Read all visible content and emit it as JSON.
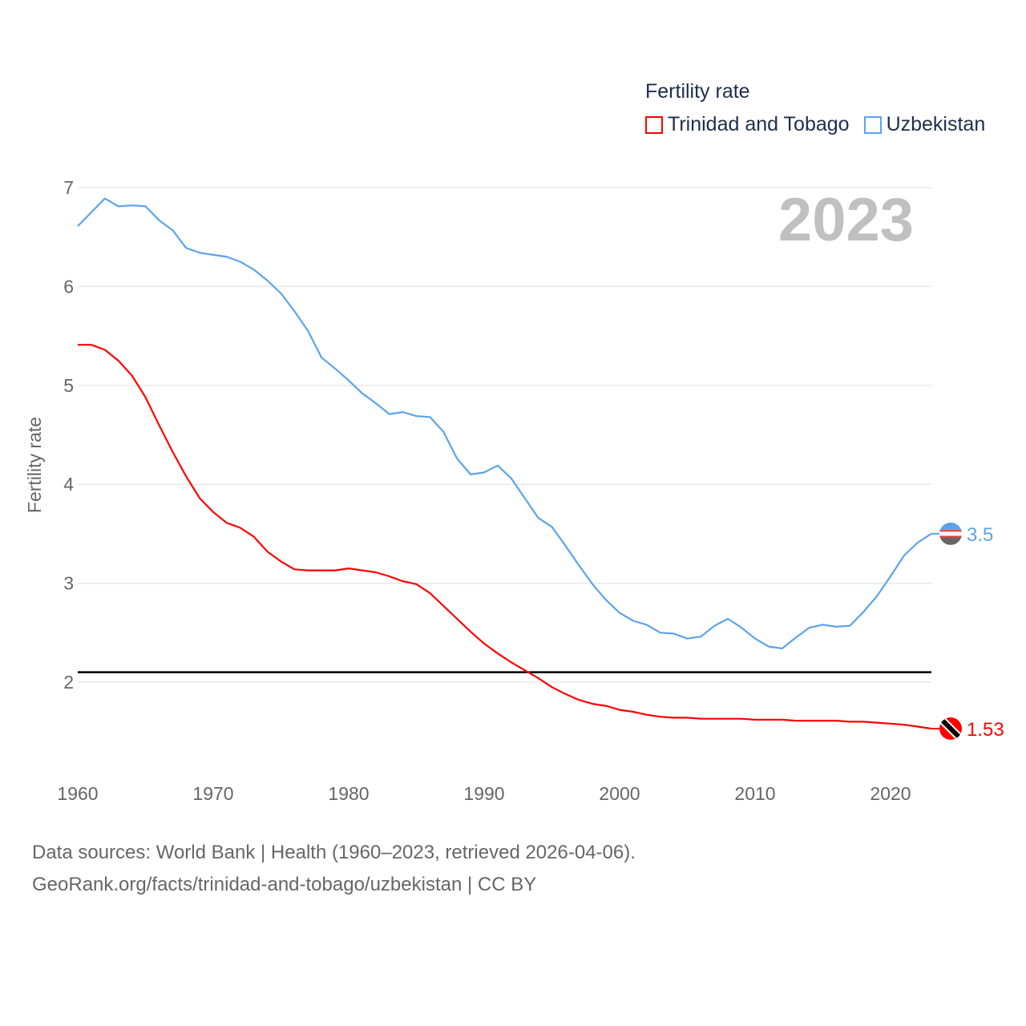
{
  "chart_data": {
    "type": "line",
    "title": "Fertility rate",
    "year_label": "2023",
    "xlabel": "",
    "ylabel": "Fertility rate",
    "xlim": [
      1960,
      2023
    ],
    "ylim": [
      1.3,
      7.1
    ],
    "x_ticks": [
      "1960",
      "1970",
      "1980",
      "1990",
      "2000",
      "2010",
      "2020"
    ],
    "y_ticks": [
      "2",
      "3",
      "4",
      "5",
      "6",
      "7"
    ],
    "grid": true,
    "legend_position": "top-right",
    "reference_line": {
      "value": 2.1,
      "color": "#000000"
    },
    "series": [
      {
        "name": "Trinidad and Tobago",
        "color": "#ff0000",
        "end_label": "1.53",
        "flag_icon": "trinidad-and-tobago-flag-icon",
        "values": [
          5.41,
          5.41,
          5.36,
          5.25,
          5.1,
          4.88,
          4.6,
          4.33,
          4.08,
          3.86,
          3.72,
          3.61,
          3.56,
          3.47,
          3.32,
          3.22,
          3.14,
          3.13,
          3.13,
          3.13,
          3.15,
          3.13,
          3.11,
          3.07,
          3.02,
          2.99,
          2.9,
          2.77,
          2.64,
          2.51,
          2.39,
          2.29,
          2.2,
          2.12,
          2.04,
          1.95,
          1.88,
          1.82,
          1.78,
          1.76,
          1.72,
          1.7,
          1.67,
          1.65,
          1.64,
          1.64,
          1.63,
          1.63,
          1.63,
          1.63,
          1.62,
          1.62,
          1.62,
          1.61,
          1.61,
          1.61,
          1.61,
          1.6,
          1.6,
          1.59,
          1.58,
          1.57,
          1.55,
          1.53
        ]
      },
      {
        "name": "Uzbekistan",
        "color": "#5ba4ec",
        "end_label": "3.5",
        "flag_icon": "uzbekistan-flag-icon",
        "values": [
          6.61,
          6.75,
          6.89,
          6.81,
          6.82,
          6.81,
          6.67,
          6.57,
          6.39,
          6.34,
          6.32,
          6.3,
          6.25,
          6.17,
          6.06,
          5.93,
          5.75,
          5.55,
          5.28,
          5.17,
          5.05,
          4.92,
          4.82,
          4.71,
          4.73,
          4.69,
          4.68,
          4.53,
          4.26,
          4.1,
          4.12,
          4.19,
          4.06,
          3.86,
          3.66,
          3.57,
          3.38,
          3.18,
          2.99,
          2.83,
          2.7,
          2.62,
          2.58,
          2.5,
          2.49,
          2.44,
          2.46,
          2.57,
          2.64,
          2.55,
          2.44,
          2.36,
          2.34,
          2.45,
          2.55,
          2.58,
          2.56,
          2.57,
          2.71,
          2.87,
          3.07,
          3.28,
          3.41,
          3.5
        ]
      }
    ]
  },
  "footer": {
    "line1": "Data sources: World Bank | Health (1960–2023, retrieved 2026-04-06).",
    "line2": "GeoRank.org/facts/trinidad-and-tobago/uzbekistan | CC BY"
  }
}
